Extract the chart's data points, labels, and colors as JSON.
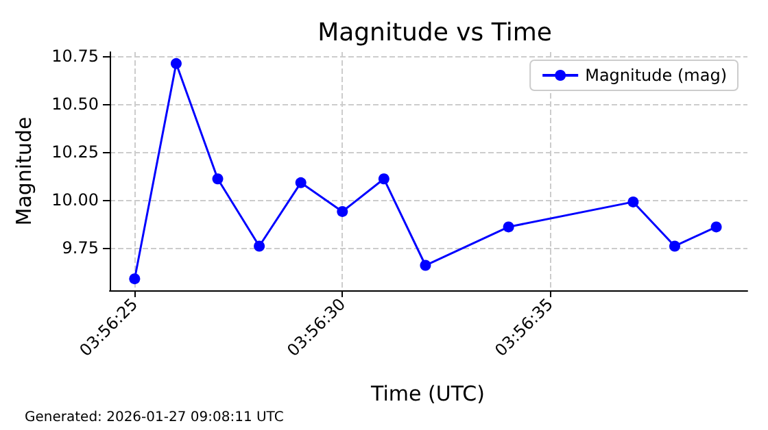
{
  "chart_data": {
    "type": "line",
    "title": "Magnitude vs Time",
    "xlabel": "Time (UTC)",
    "ylabel": "Magnitude",
    "x": [
      3.9402778,
      3.9405556,
      3.9408333,
      3.9411111,
      3.9413889,
      3.9416667,
      3.9419444,
      3.9422222,
      3.9427778,
      3.9436111,
      3.9438889,
      3.9441667
    ],
    "series": [
      {
        "name": "Magnitude (mag)",
        "color": "#0000ff",
        "values": [
          9.59,
          10.71,
          10.11,
          9.76,
          10.09,
          9.94,
          10.11,
          9.66,
          9.86,
          9.99,
          9.76,
          9.86
        ]
      }
    ],
    "xlim": [
      3.9401111,
      3.944375
    ],
    "xticks": [
      {
        "value": 3.9402778,
        "label": "03:56:25"
      },
      {
        "value": 3.9416667,
        "label": "03:56:30"
      },
      {
        "value": 3.9430556,
        "label": "03:56:35"
      }
    ],
    "ylim": [
      9.53,
      10.77
    ],
    "yticks": [
      {
        "value": 9.75,
        "label": "9.75"
      },
      {
        "value": 10,
        "label": "10.00"
      },
      {
        "value": 10.25,
        "label": "10.25"
      },
      {
        "value": 10.5,
        "label": "10.50"
      },
      {
        "value": 10.75,
        "label": "10.75"
      }
    ],
    "grid": true,
    "legend": "top right",
    "marker": "circle",
    "line_style": "solid",
    "annotations": [
      "Generated: 2026-01-27 09:08:11 UTC"
    ]
  }
}
